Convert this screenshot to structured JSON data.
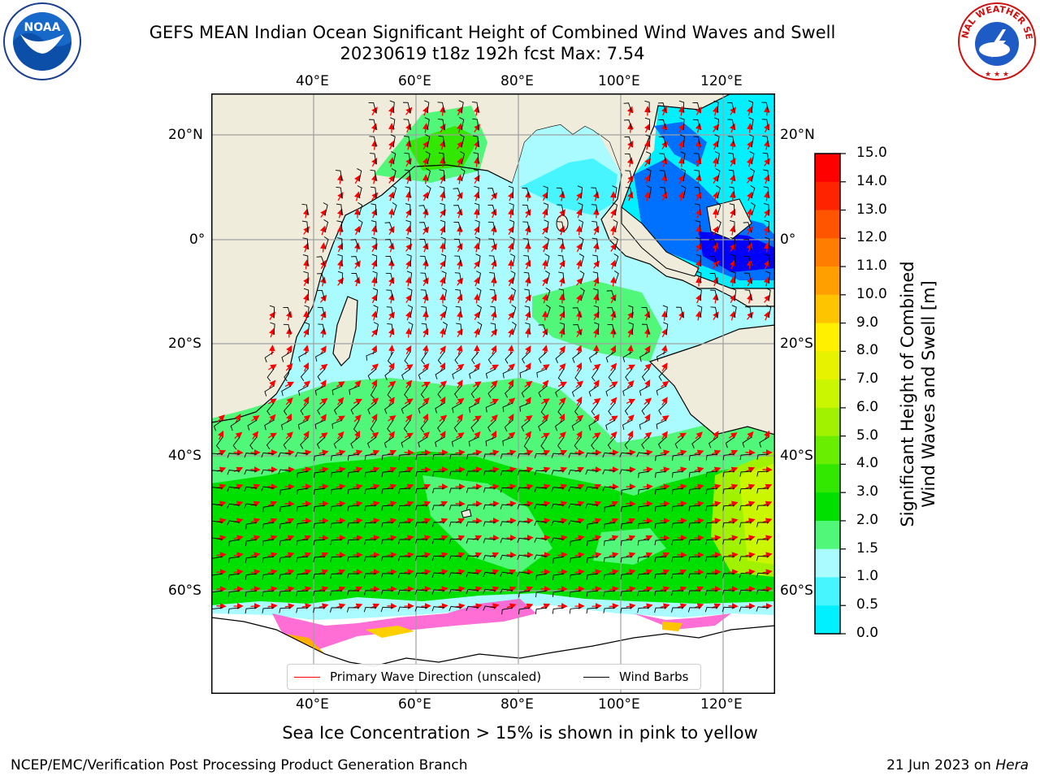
{
  "title": {
    "line1": "GEFS MEAN Indian Ocean Significant Height of Combined Wind Waves and Swell",
    "line2": "20230619 t18z 192h fcst   Max: 7.54"
  },
  "logos": {
    "noaa": "NOAA",
    "nws": "NATIONAL WEATHER SERVICE"
  },
  "map": {
    "lon_ticks_top": [
      "40°E",
      "60°E",
      "80°E",
      "100°E",
      "120°E"
    ],
    "lon_ticks_bottom": [
      "40°E",
      "60°E",
      "80°E",
      "100°E",
      "120°E"
    ],
    "lat_ticks_left": [
      "20°N",
      "0°",
      "20°S",
      "40°S",
      "60°S"
    ],
    "lat_ticks_right": [
      "20°N",
      "0°",
      "20°S",
      "40°S",
      "60°S"
    ],
    "colors": {
      "land": "#efecdc",
      "ice": "#ffffff",
      "gridline": "#a0a0a0",
      "wave_arrow": "#ff0000",
      "wind_barb": "#000000"
    }
  },
  "colorbar": {
    "ticks": [
      "15.0",
      "14.0",
      "13.0",
      "12.0",
      "11.0",
      "10.0",
      "9.0",
      "8.0",
      "7.0",
      "6.0",
      "5.0",
      "4.0",
      "3.0",
      "2.0",
      "1.5",
      "1.0",
      "0.5",
      "0.0"
    ],
    "colors": [
      "#0000ff",
      "#0070ff",
      "#00f0ff",
      "#46f5ff",
      "#a9fbff",
      "#50f779",
      "#00e000",
      "#32e800",
      "#69ed00",
      "#a1f200",
      "#c9f600",
      "#e6f200",
      "#fff000",
      "#ffc400",
      "#ffa000",
      "#ff7d00",
      "#ff5400",
      "#ff2400",
      "#ff0000"
    ],
    "label_line1": "Significant Height of Combined",
    "label_line2": "Wind Waves and Swell [m]"
  },
  "legend": {
    "wave_label": "Primary Wave Direction (unscaled)",
    "wind_label": "Wind Barbs"
  },
  "footer": {
    "note": "Sea Ice Concentration > 15% is shown in pink to yellow",
    "credit": "NCEP/EMC/Verification Post Processing Product Generation Branch",
    "date": "21 Jun 2023 on",
    "machine": "Hera"
  }
}
